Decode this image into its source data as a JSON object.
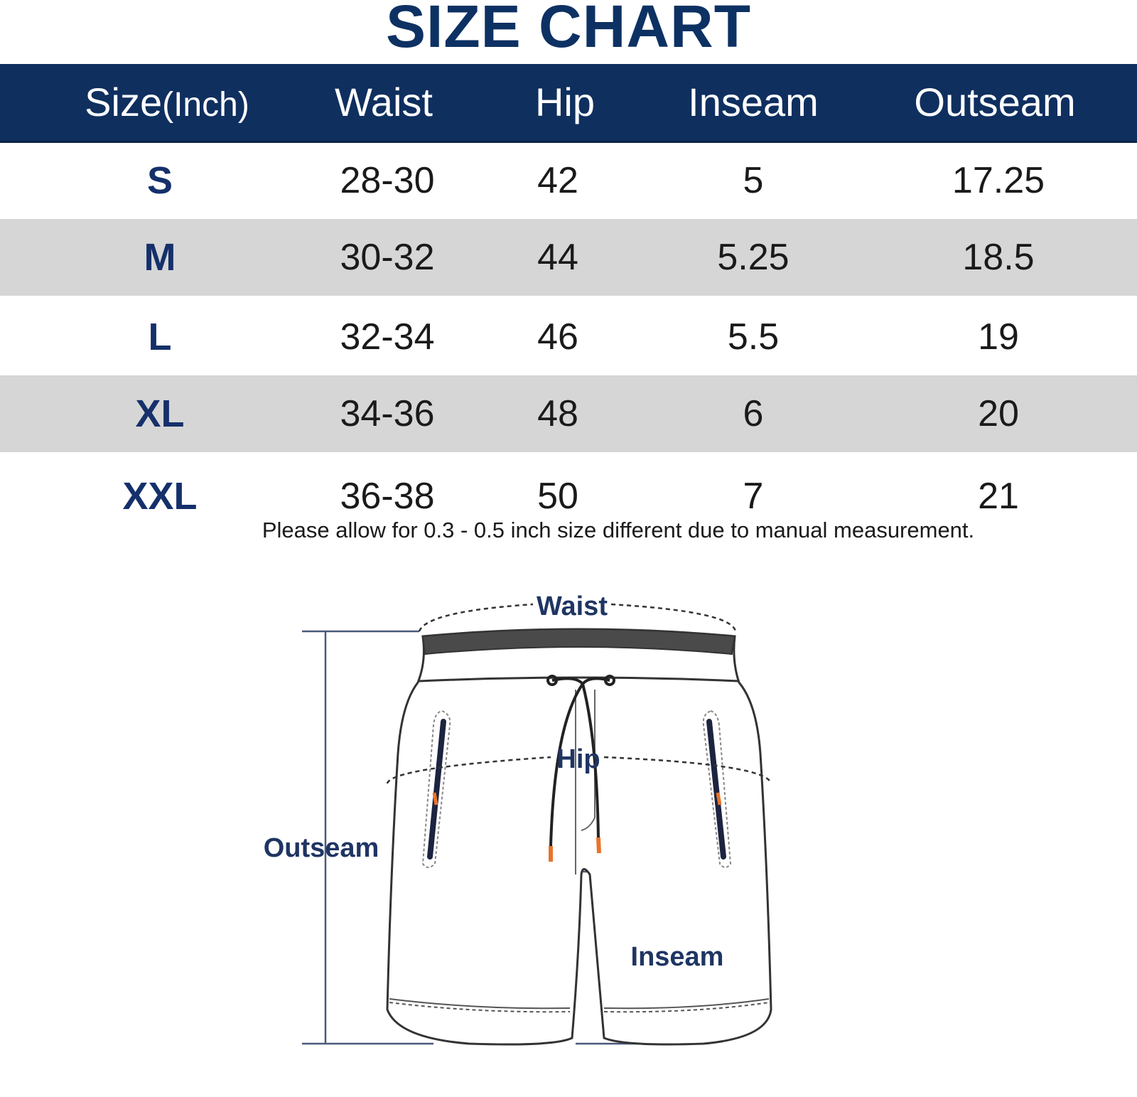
{
  "title": "SIZE CHART",
  "table": {
    "headers": {
      "size_main": "Size",
      "size_unit": "(Inch)",
      "waist": "Waist",
      "hip": "Hip",
      "inseam": "Inseam",
      "outseam": "Outseam"
    },
    "rows": [
      {
        "size": "S",
        "waist": "28-30",
        "hip": "42",
        "inseam": "5",
        "outseam": "17.25"
      },
      {
        "size": "M",
        "waist": "30-32",
        "hip": "44",
        "inseam": "5.25",
        "outseam": "18.5"
      },
      {
        "size": "L",
        "waist": "32-34",
        "hip": "46",
        "inseam": "5.5",
        "outseam": "19"
      },
      {
        "size": "XL",
        "waist": "34-36",
        "hip": "48",
        "inseam": "6",
        "outseam": "20"
      },
      {
        "size": "XXL",
        "waist": "36-38",
        "hip": "50",
        "inseam": "7",
        "outseam": "21"
      }
    ]
  },
  "note": "Please allow for 0.3 - 0.5 inch size different due to manual measurement.",
  "diagram": {
    "waist_label": "Waist",
    "hip_label": "Hip",
    "outseam_label": "Outseam",
    "inseam_label": "Inseam"
  },
  "colors": {
    "title": "#0d3163",
    "header_bg": "#0f2f5f",
    "shaded_row": "#d6d6d6",
    "diagram_label": "#1f3563",
    "drawstring_tip": "#e8742a"
  }
}
